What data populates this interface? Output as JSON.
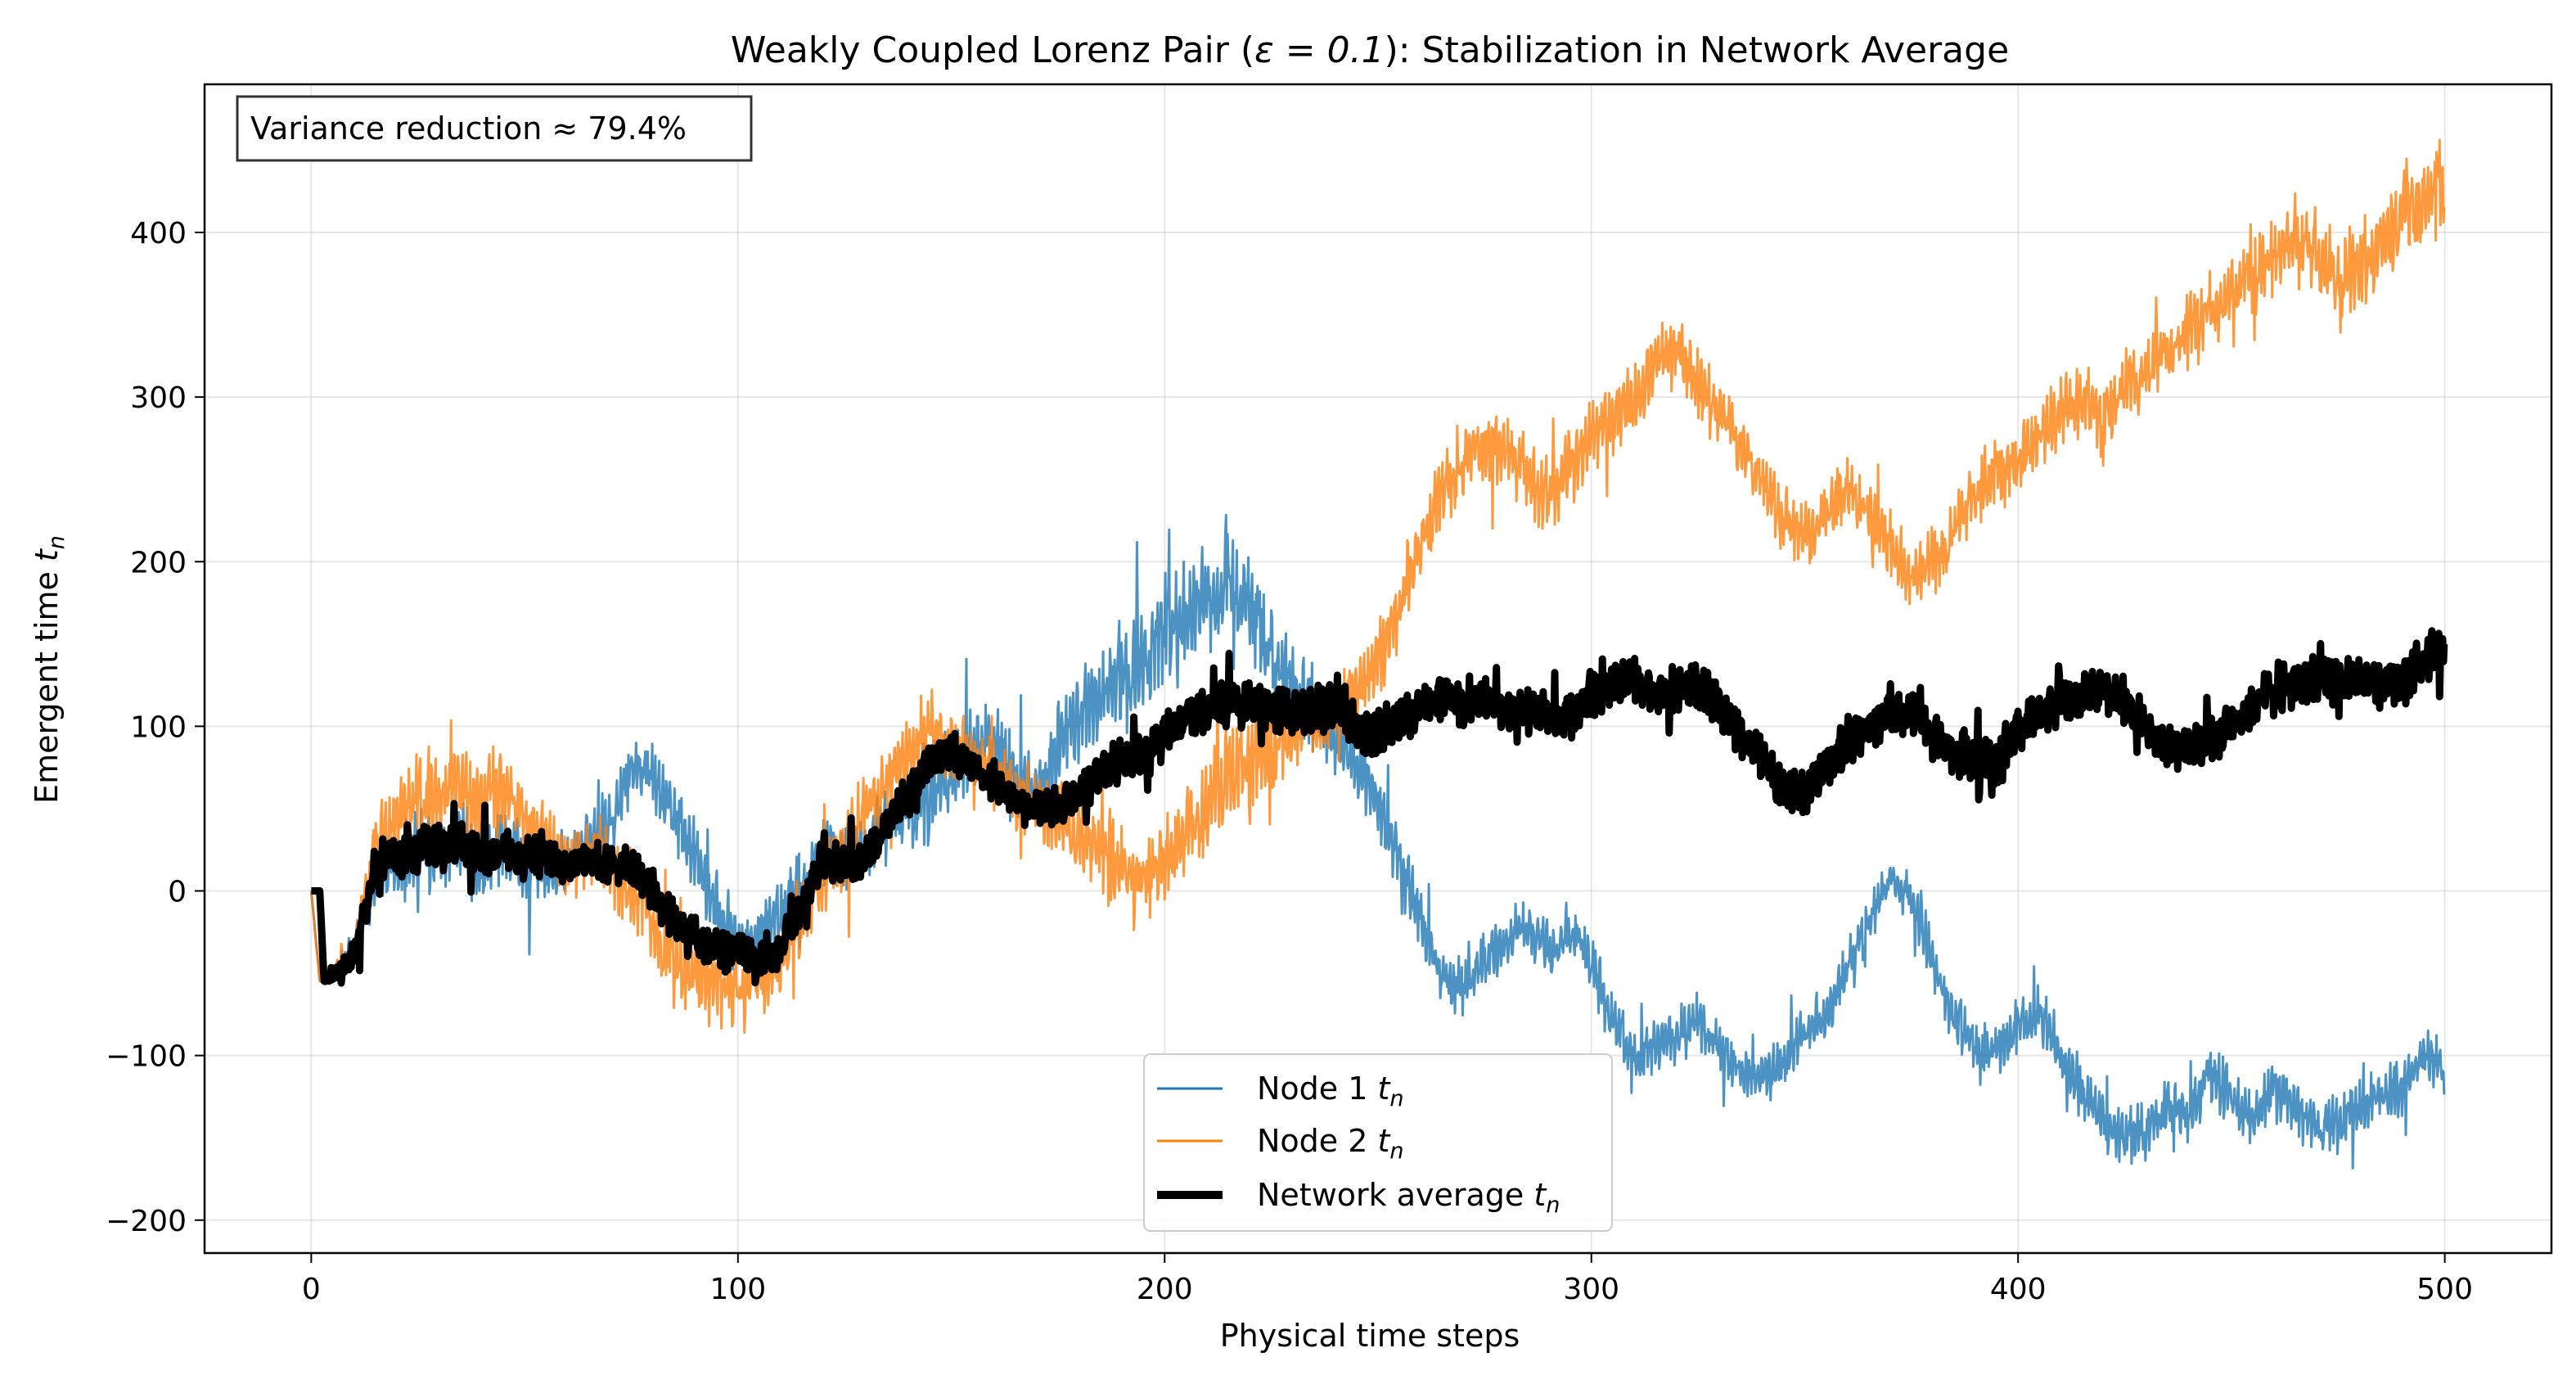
{
  "chart_data": {
    "type": "line",
    "title_prefix": "Weakly Coupled Lorenz Pair (",
    "title_math": "ε = 0.1",
    "title_suffix": "): Stabilization in Network Average",
    "xlabel": "Physical time steps",
    "ylabel_text": "Emergent time ",
    "ylabel_math": "t",
    "ylabel_sub": "n",
    "xlim": [
      -25,
      525
    ],
    "ylim": [
      -220,
      490
    ],
    "xticks": [
      0,
      100,
      200,
      300,
      400,
      500
    ],
    "yticks": [
      -200,
      -100,
      0,
      100,
      200,
      300,
      400
    ],
    "ytick_labels": [
      "−200",
      "−100",
      "0",
      "100",
      "200",
      "300",
      "400"
    ],
    "grid": true,
    "annotation": "Variance reduction ≈ 79.4%",
    "legend_position": "lower-center",
    "series": [
      {
        "name": "Node 1",
        "label_main": "Node 1 ",
        "label_math": "t",
        "label_sub": "n",
        "color": "#1f77b4",
        "x": [
          0,
          2,
          5,
          10,
          15,
          20,
          25,
          30,
          35,
          40,
          45,
          50,
          55,
          60,
          65,
          70,
          75,
          80,
          85,
          90,
          95,
          100,
          105,
          110,
          115,
          120,
          125,
          130,
          135,
          140,
          145,
          150,
          155,
          160,
          165,
          170,
          175,
          180,
          185,
          190,
          195,
          200,
          205,
          210,
          215,
          220,
          225,
          230,
          235,
          240,
          245,
          250,
          255,
          260,
          265,
          270,
          275,
          280,
          285,
          290,
          295,
          300,
          305,
          310,
          315,
          320,
          325,
          330,
          335,
          340,
          345,
          350,
          355,
          360,
          365,
          370,
          375,
          380,
          385,
          390,
          395,
          400,
          405,
          410,
          415,
          420,
          425,
          430,
          435,
          440,
          445,
          450,
          455,
          460,
          465,
          470,
          475,
          480,
          485,
          490,
          495,
          500
        ],
        "y": [
          0,
          -55,
          -50,
          -35,
          5,
          15,
          30,
          20,
          35,
          10,
          30,
          15,
          10,
          15,
          30,
          40,
          75,
          70,
          45,
          20,
          -10,
          -35,
          -25,
          -15,
          0,
          25,
          20,
          30,
          40,
          45,
          55,
          70,
          85,
          90,
          75,
          60,
          90,
          105,
          120,
          130,
          140,
          160,
          170,
          180,
          185,
          170,
          140,
          125,
          110,
          95,
          80,
          50,
          20,
          -20,
          -50,
          -60,
          -40,
          -35,
          -20,
          -40,
          -25,
          -40,
          -80,
          -100,
          -95,
          -90,
          -80,
          -95,
          -110,
          -115,
          -105,
          -85,
          -75,
          -50,
          -20,
          10,
          -5,
          -40,
          -75,
          -100,
          -95,
          -85,
          -75,
          -100,
          -120,
          -140,
          -150,
          -145,
          -130,
          -135,
          -110,
          -125,
          -140,
          -120,
          -130,
          -145,
          -140,
          -135,
          -125,
          -120,
          -100,
          -110
        ],
        "amp": [
          0,
          2,
          6,
          10,
          18,
          22,
          26,
          22,
          26,
          26,
          24,
          22,
          20,
          18,
          20,
          22,
          14,
          18,
          20,
          22,
          22,
          22,
          20,
          20,
          22,
          22,
          22,
          22,
          22,
          26,
          26,
          26,
          26,
          24,
          24,
          24,
          28,
          28,
          30,
          32,
          32,
          34,
          34,
          34,
          34,
          30,
          28,
          26,
          26,
          26,
          24,
          22,
          20,
          20,
          18,
          16,
          16,
          18,
          18,
          18,
          18,
          18,
          18,
          18,
          18,
          18,
          18,
          18,
          18,
          16,
          16,
          16,
          16,
          18,
          18,
          10,
          16,
          18,
          18,
          16,
          16,
          18,
          18,
          18,
          18,
          18,
          18,
          18,
          18,
          18,
          18,
          18,
          18,
          18,
          18,
          18,
          18,
          18,
          18,
          18,
          18,
          16
        ]
      },
      {
        "name": "Node 2",
        "label_main": "Node 2 ",
        "label_math": "t",
        "label_sub": "n",
        "color": "#ff7f0e",
        "x": [
          0,
          2,
          5,
          10,
          15,
          20,
          25,
          30,
          35,
          40,
          45,
          50,
          55,
          60,
          65,
          70,
          75,
          80,
          85,
          90,
          95,
          100,
          105,
          110,
          115,
          120,
          125,
          130,
          135,
          140,
          145,
          150,
          155,
          160,
          165,
          170,
          175,
          180,
          185,
          190,
          195,
          200,
          205,
          210,
          215,
          220,
          225,
          230,
          235,
          240,
          245,
          250,
          255,
          260,
          265,
          270,
          275,
          280,
          285,
          290,
          295,
          300,
          305,
          310,
          315,
          320,
          325,
          330,
          335,
          340,
          345,
          350,
          355,
          360,
          365,
          370,
          375,
          380,
          385,
          390,
          395,
          400,
          405,
          410,
          415,
          420,
          425,
          430,
          435,
          440,
          445,
          450,
          455,
          460,
          465,
          470,
          475,
          480,
          485,
          490,
          495,
          500
        ],
        "y": [
          0,
          -55,
          -50,
          -35,
          30,
          45,
          55,
          60,
          65,
          50,
          65,
          45,
          30,
          15,
          25,
          15,
          0,
          -20,
          -45,
          -50,
          -55,
          -60,
          -55,
          -45,
          -20,
          10,
          25,
          45,
          70,
          80,
          100,
          90,
          80,
          70,
          60,
          50,
          45,
          35,
          25,
          10,
          5,
          20,
          30,
          50,
          70,
          80,
          90,
          95,
          100,
          105,
          120,
          140,
          170,
          210,
          240,
          260,
          270,
          265,
          255,
          240,
          255,
          275,
          285,
          300,
          320,
          330,
          310,
          290,
          270,
          250,
          225,
          215,
          230,
          245,
          230,
          210,
          190,
          200,
          220,
          240,
          255,
          260,
          275,
          290,
          300,
          290,
          305,
          320,
          330,
          340,
          350,
          360,
          375,
          385,
          395,
          390,
          370,
          380,
          395,
          410,
          420,
          430
        ],
        "amp": [
          0,
          2,
          6,
          10,
          20,
          26,
          28,
          28,
          28,
          26,
          26,
          22,
          20,
          20,
          22,
          22,
          22,
          22,
          22,
          22,
          22,
          22,
          20,
          20,
          22,
          22,
          22,
          24,
          24,
          24,
          26,
          26,
          26,
          24,
          24,
          24,
          26,
          26,
          26,
          28,
          28,
          28,
          30,
          30,
          30,
          28,
          26,
          26,
          24,
          24,
          24,
          24,
          24,
          22,
          22,
          22,
          22,
          22,
          22,
          22,
          22,
          22,
          22,
          22,
          22,
          22,
          22,
          22,
          20,
          20,
          20,
          20,
          20,
          20,
          20,
          20,
          18,
          20,
          20,
          20,
          20,
          22,
          22,
          22,
          22,
          22,
          22,
          22,
          24,
          24,
          24,
          24,
          24,
          24,
          26,
          26,
          26,
          26,
          26,
          26,
          26,
          28
        ]
      },
      {
        "name": "Network average",
        "label_main": "Network average ",
        "label_math": "t",
        "label_sub": "n",
        "color": "#000000",
        "x": [
          0,
          1,
          2,
          3,
          5,
          10,
          15,
          20,
          25,
          30,
          35,
          40,
          45,
          50,
          55,
          60,
          65,
          70,
          75,
          80,
          85,
          90,
          95,
          100,
          105,
          110,
          115,
          120,
          125,
          130,
          135,
          140,
          145,
          150,
          155,
          160,
          165,
          170,
          175,
          180,
          185,
          190,
          195,
          200,
          205,
          210,
          215,
          220,
          225,
          230,
          235,
          240,
          245,
          250,
          255,
          260,
          265,
          270,
          275,
          280,
          285,
          290,
          295,
          300,
          305,
          310,
          315,
          320,
          325,
          330,
          335,
          340,
          345,
          350,
          355,
          360,
          365,
          370,
          375,
          380,
          385,
          390,
          395,
          400,
          405,
          410,
          415,
          420,
          425,
          430,
          435,
          440,
          445,
          450,
          455,
          460,
          465,
          470,
          475,
          480,
          485,
          490,
          495,
          500
        ],
        "y": [
          0,
          0,
          0,
          -55,
          -52,
          -40,
          15,
          20,
          25,
          25,
          30,
          20,
          25,
          20,
          20,
          15,
          20,
          15,
          15,
          0,
          -20,
          -30,
          -35,
          -35,
          -45,
          -35,
          -10,
          20,
          15,
          20,
          40,
          60,
          80,
          85,
          75,
          65,
          55,
          50,
          50,
          60,
          75,
          80,
          80,
          95,
          105,
          110,
          115,
          115,
          110,
          110,
          110,
          115,
          100,
          95,
          105,
          110,
          120,
          115,
          115,
          110,
          110,
          110,
          105,
          120,
          125,
          130,
          120,
          120,
          125,
          110,
          95,
          80,
          60,
          60,
          75,
          90,
          100,
          105,
          110,
          95,
          85,
          80,
          80,
          100,
          110,
          115,
          120,
          120,
          115,
          100,
          85,
          85,
          90,
          100,
          115,
          120,
          125,
          130,
          125,
          130,
          125,
          125,
          140,
          150
        ],
        "amp": [
          0,
          0,
          0,
          0,
          4,
          8,
          12,
          14,
          14,
          14,
          14,
          12,
          12,
          12,
          12,
          10,
          12,
          12,
          12,
          12,
          12,
          12,
          12,
          12,
          12,
          12,
          12,
          12,
          12,
          12,
          12,
          12,
          12,
          12,
          12,
          12,
          12,
          12,
          12,
          12,
          14,
          14,
          14,
          14,
          14,
          14,
          14,
          14,
          14,
          14,
          14,
          14,
          14,
          14,
          14,
          14,
          14,
          14,
          14,
          14,
          14,
          14,
          14,
          14,
          14,
          14,
          14,
          14,
          14,
          14,
          14,
          14,
          14,
          14,
          14,
          14,
          14,
          14,
          14,
          14,
          14,
          14,
          14,
          14,
          14,
          14,
          14,
          14,
          14,
          14,
          14,
          14,
          14,
          14,
          14,
          14,
          14,
          14,
          14,
          14,
          14,
          14,
          14,
          14
        ]
      }
    ]
  }
}
